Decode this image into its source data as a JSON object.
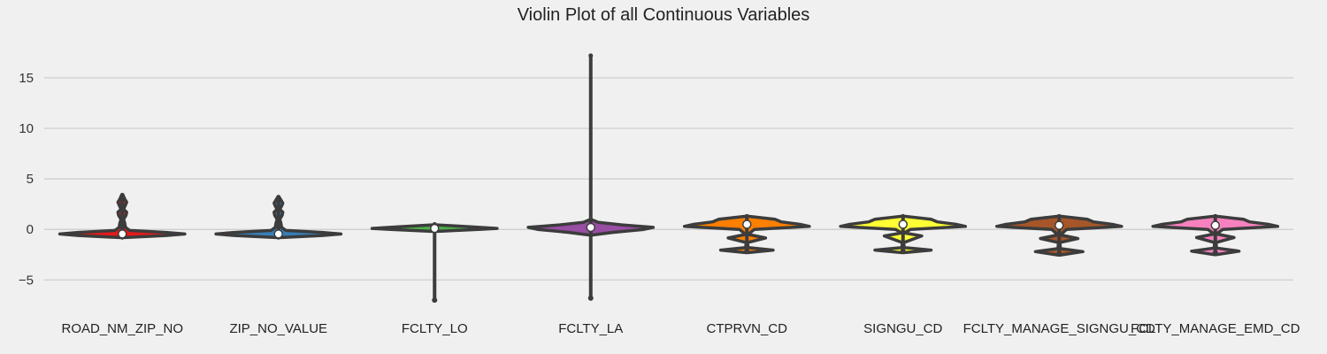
{
  "chart_data": {
    "type": "violin",
    "title": "Violin Plot of all Continuous Variables",
    "xlabel": "",
    "ylabel": "",
    "ylim": [
      -7.6,
      19.2
    ],
    "yticks": [
      -5,
      0,
      5,
      10,
      15
    ],
    "grid": true,
    "categories": [
      "ROAD_NM_ZIP_NO",
      "ZIP_NO_VALUE",
      "FCLTY_LO",
      "FCLTY_LA",
      "CTPRVN_CD",
      "SIGNGU_CD",
      "FCLTY_MANAGE_SIGNGU_CD",
      "FCLTY_MANAGE_EMD_CD"
    ],
    "series": [
      {
        "color": "#e41a1c",
        "median": -0.45,
        "q1": -0.55,
        "q3": -0.3,
        "whisker_low": -0.75,
        "whisker_high": 3.4,
        "profile": [
          [
            -0.8,
            0.05
          ],
          [
            -0.6,
            0.7
          ],
          [
            -0.45,
            1
          ],
          [
            -0.3,
            0.7
          ],
          [
            -0.1,
            0.12
          ],
          [
            0.2,
            0.05
          ],
          [
            0.6,
            0.04
          ],
          [
            1.0,
            0.02
          ],
          [
            1.4,
            0.06
          ],
          [
            1.7,
            0.07
          ],
          [
            2.0,
            0.02
          ],
          [
            2.4,
            0.05
          ],
          [
            2.7,
            0.07
          ],
          [
            3.0,
            0.04
          ],
          [
            3.4,
            0.01
          ]
        ]
      },
      {
        "color": "#377eb8",
        "median": -0.45,
        "q1": -0.55,
        "q3": -0.3,
        "whisker_low": -0.75,
        "whisker_high": 3.2,
        "profile": [
          [
            -0.8,
            0.05
          ],
          [
            -0.6,
            0.7
          ],
          [
            -0.45,
            1
          ],
          [
            -0.3,
            0.7
          ],
          [
            -0.1,
            0.12
          ],
          [
            0.2,
            0.05
          ],
          [
            0.6,
            0.04
          ],
          [
            1.0,
            0.02
          ],
          [
            1.4,
            0.06
          ],
          [
            1.7,
            0.07
          ],
          [
            2.0,
            0.02
          ],
          [
            2.3,
            0.05
          ],
          [
            2.6,
            0.07
          ],
          [
            2.9,
            0.04
          ],
          [
            3.2,
            0.01
          ]
        ]
      },
      {
        "color": "#4daf4a",
        "median": 0.1,
        "q1": 0.0,
        "q3": 0.2,
        "whisker_low": -7.0,
        "whisker_high": 0.5,
        "profile": [
          [
            -0.2,
            0.02
          ],
          [
            0.0,
            0.7
          ],
          [
            0.1,
            1
          ],
          [
            0.25,
            0.6
          ],
          [
            0.45,
            0.04
          ]
        ]
      },
      {
        "color": "#984ea3",
        "median": 0.2,
        "q1": 0.05,
        "q3": 0.35,
        "whisker_low": -6.8,
        "whisker_high": 17.2,
        "profile": [
          [
            -0.55,
            0.03
          ],
          [
            -0.3,
            0.35
          ],
          [
            0.0,
            0.85
          ],
          [
            0.2,
            1
          ],
          [
            0.45,
            0.5
          ],
          [
            0.7,
            0.12
          ],
          [
            0.95,
            0.02
          ]
        ]
      },
      {
        "color": "#ff7f00",
        "median": 0.5,
        "q1": 0.3,
        "q3": 0.75,
        "whisker_low": -2.15,
        "whisker_high": 1.3,
        "profile": [
          [
            -2.3,
            0.01
          ],
          [
            -2.05,
            0.42
          ],
          [
            -1.8,
            0.02
          ],
          [
            -1.3,
            0.01
          ],
          [
            -0.85,
            0.3
          ],
          [
            -0.5,
            0.02
          ],
          [
            0.0,
            0.12
          ],
          [
            0.3,
            1
          ],
          [
            0.5,
            0.85
          ],
          [
            0.75,
            0.55
          ],
          [
            1.0,
            0.45
          ],
          [
            1.3,
            0.02
          ]
        ]
      },
      {
        "color": "#ffff33",
        "median": 0.5,
        "q1": 0.3,
        "q3": 0.75,
        "whisker_low": -2.15,
        "whisker_high": 1.3,
        "profile": [
          [
            -2.3,
            0.01
          ],
          [
            -2.05,
            0.45
          ],
          [
            -1.8,
            0.02
          ],
          [
            -1.3,
            0.01
          ],
          [
            -0.65,
            0.3
          ],
          [
            -0.35,
            0.02
          ],
          [
            0.0,
            0.12
          ],
          [
            0.3,
            1
          ],
          [
            0.5,
            0.85
          ],
          [
            0.75,
            0.55
          ],
          [
            1.0,
            0.45
          ],
          [
            1.3,
            0.02
          ]
        ]
      },
      {
        "color": "#a65628",
        "median": 0.4,
        "q1": 0.25,
        "q3": 0.7,
        "whisker_low": -2.4,
        "whisker_high": 1.3,
        "profile": [
          [
            -2.55,
            0.01
          ],
          [
            -2.2,
            0.38
          ],
          [
            -1.9,
            0.02
          ],
          [
            -1.3,
            0.01
          ],
          [
            -0.9,
            0.3
          ],
          [
            -0.55,
            0.02
          ],
          [
            0.0,
            0.12
          ],
          [
            0.3,
            1
          ],
          [
            0.5,
            0.85
          ],
          [
            0.75,
            0.55
          ],
          [
            1.0,
            0.45
          ],
          [
            1.3,
            0.02
          ]
        ]
      },
      {
        "color": "#f781bf",
        "median": 0.4,
        "q1": 0.25,
        "q3": 0.7,
        "whisker_low": -2.3,
        "whisker_high": 1.3,
        "profile": [
          [
            -2.5,
            0.01
          ],
          [
            -2.15,
            0.38
          ],
          [
            -1.85,
            0.02
          ],
          [
            -1.3,
            0.01
          ],
          [
            -0.8,
            0.3
          ],
          [
            -0.45,
            0.02
          ],
          [
            0.0,
            0.12
          ],
          [
            0.3,
            1
          ],
          [
            0.5,
            0.85
          ],
          [
            0.75,
            0.55
          ],
          [
            1.0,
            0.45
          ],
          [
            1.3,
            0.02
          ]
        ]
      }
    ]
  }
}
